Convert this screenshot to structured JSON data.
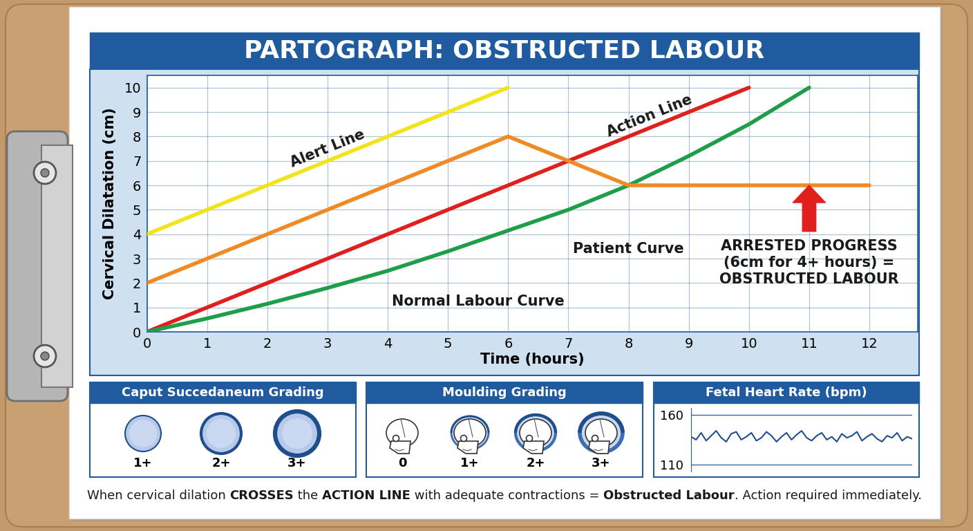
{
  "title": "PARTOGRAPH: OBSTRUCTED LABOUR",
  "chart_data": [
    {
      "type": "line",
      "x_label": "Time (hours)",
      "y_label": "Cervical Dilatation (cm)",
      "xlim": [
        0,
        12.8
      ],
      "ylim": [
        0,
        10.5
      ],
      "xticks": [
        0,
        1,
        2,
        3,
        4,
        5,
        6,
        7,
        8,
        9,
        10,
        11,
        12
      ],
      "yticks": [
        0,
        1,
        2,
        3,
        4,
        5,
        6,
        7,
        8,
        9,
        10
      ],
      "grid": true,
      "series": [
        {
          "name": "Alert Line",
          "color": "#f2e41c",
          "x": [
            0,
            6
          ],
          "values": [
            4,
            10
          ]
        },
        {
          "name": "Action Line",
          "color": "#e0201c",
          "x": [
            0,
            10
          ],
          "values": [
            0,
            10
          ]
        },
        {
          "name": "Normal Labour Curve",
          "color": "#1e9e48",
          "x": [
            0,
            1,
            2,
            3,
            4,
            5,
            6,
            7,
            8,
            9,
            10,
            11
          ],
          "values": [
            0,
            0.55,
            1.15,
            1.8,
            2.5,
            3.3,
            4.15,
            5.0,
            6.0,
            7.2,
            8.5,
            10
          ]
        },
        {
          "name": "Patient Curve",
          "color": "#f08a24",
          "x": [
            0,
            6,
            8,
            12
          ],
          "values": [
            2,
            8,
            6,
            6
          ]
        }
      ],
      "annotations": [
        {
          "text": "ARRESTED PROGRESS\n(6cm for 4+ hours) =\nOBSTRUCTED LABOUR",
          "x": 11,
          "y": 6
        }
      ]
    },
    {
      "type": "line",
      "title": "Fetal Heart Rate (bpm)",
      "ylim": [
        103,
        167
      ],
      "yticks": [
        110,
        160
      ],
      "grid": true,
      "tick_labels": "y",
      "color": "#1f4e8c",
      "values": [
        138,
        135,
        142,
        134,
        139,
        144,
        137,
        133,
        141,
        143,
        135,
        138,
        142,
        134,
        137,
        143,
        139,
        133,
        138,
        142,
        135,
        140,
        144,
        137,
        134,
        139,
        142,
        135,
        138,
        133,
        141,
        137,
        139,
        143,
        134,
        138,
        141,
        136,
        133,
        139,
        137,
        142,
        134,
        138,
        136
      ]
    }
  ],
  "caput_succedaneum": {
    "title": "Caput Succedaneum Grading",
    "grades": [
      "1+",
      "2+",
      "3+"
    ]
  },
  "moulding": {
    "title": "Moulding Grading",
    "grades": [
      "0",
      "1+",
      "2+",
      "3+"
    ]
  },
  "footer": [
    "When cervical dilation ",
    "CROSSES",
    " the ",
    "ACTION LINE",
    " with adequate contractions = ",
    "Obstructed Labour",
    ". Action required immediately."
  ]
}
